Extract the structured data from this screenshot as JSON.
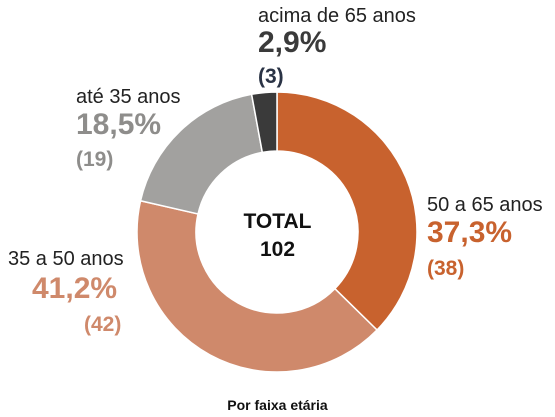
{
  "chart_data": {
    "type": "pie",
    "style": "donut",
    "center_total_label": "TOTAL",
    "center_total_value": "102",
    "caption": "Por faixa etária",
    "slices": [
      {
        "key": "50_65",
        "label": "50 a 65 anos",
        "percent": 37.3,
        "percent_text": "37,3%",
        "count": 38,
        "count_text": "(38)",
        "color": "#c8622e",
        "label_color": "#c8622e"
      },
      {
        "key": "35_50",
        "label": "35 a 50 anos",
        "percent": 41.2,
        "percent_text": "41,2%",
        "count": 42,
        "count_text": "(42)",
        "color": "#cf896b",
        "label_color": "#cf896b"
      },
      {
        "key": "ate_35",
        "label": "até 35 anos",
        "percent": 18.5,
        "percent_text": "18,5%",
        "count": 19,
        "count_text": "(19)",
        "color": "#a2a19f",
        "label_color": "#8e8d8b"
      },
      {
        "key": "acima_65",
        "label": "acima de 65 anos",
        "percent": 2.9,
        "percent_text": "2,9%",
        "count": 3,
        "count_text": "(3)",
        "color": "#3a3a3a",
        "label_color": "#3a3a3a",
        "count_color": "#2a3345"
      }
    ]
  }
}
